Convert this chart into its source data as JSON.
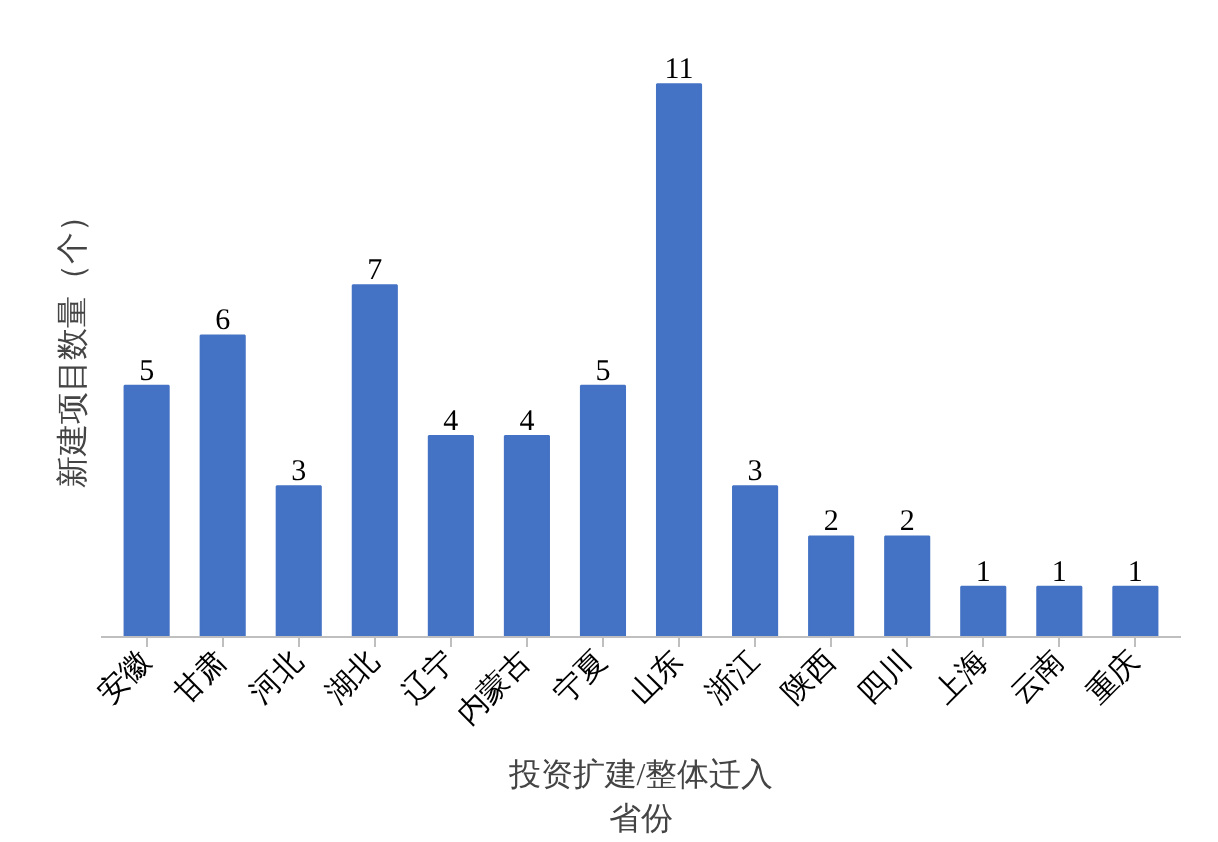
{
  "chart_data": {
    "type": "bar",
    "xlabel": "投资扩建/整体迁入",
    "annotations": [
      "省份"
    ],
    "ylabel": "新建项目数量（个）",
    "categories": [
      "安徽",
      "甘肃",
      "河北",
      "湖北",
      "辽宁",
      "内蒙古",
      "宁夏",
      "山东",
      "浙江",
      "陕西",
      "四川",
      "上海",
      "云南",
      "重庆"
    ],
    "values": [
      5,
      6,
      3,
      7,
      4,
      4,
      5,
      11,
      3,
      2,
      2,
      1,
      1,
      1
    ],
    "color": "#4472c4",
    "data_labels": true,
    "grid": false
  }
}
